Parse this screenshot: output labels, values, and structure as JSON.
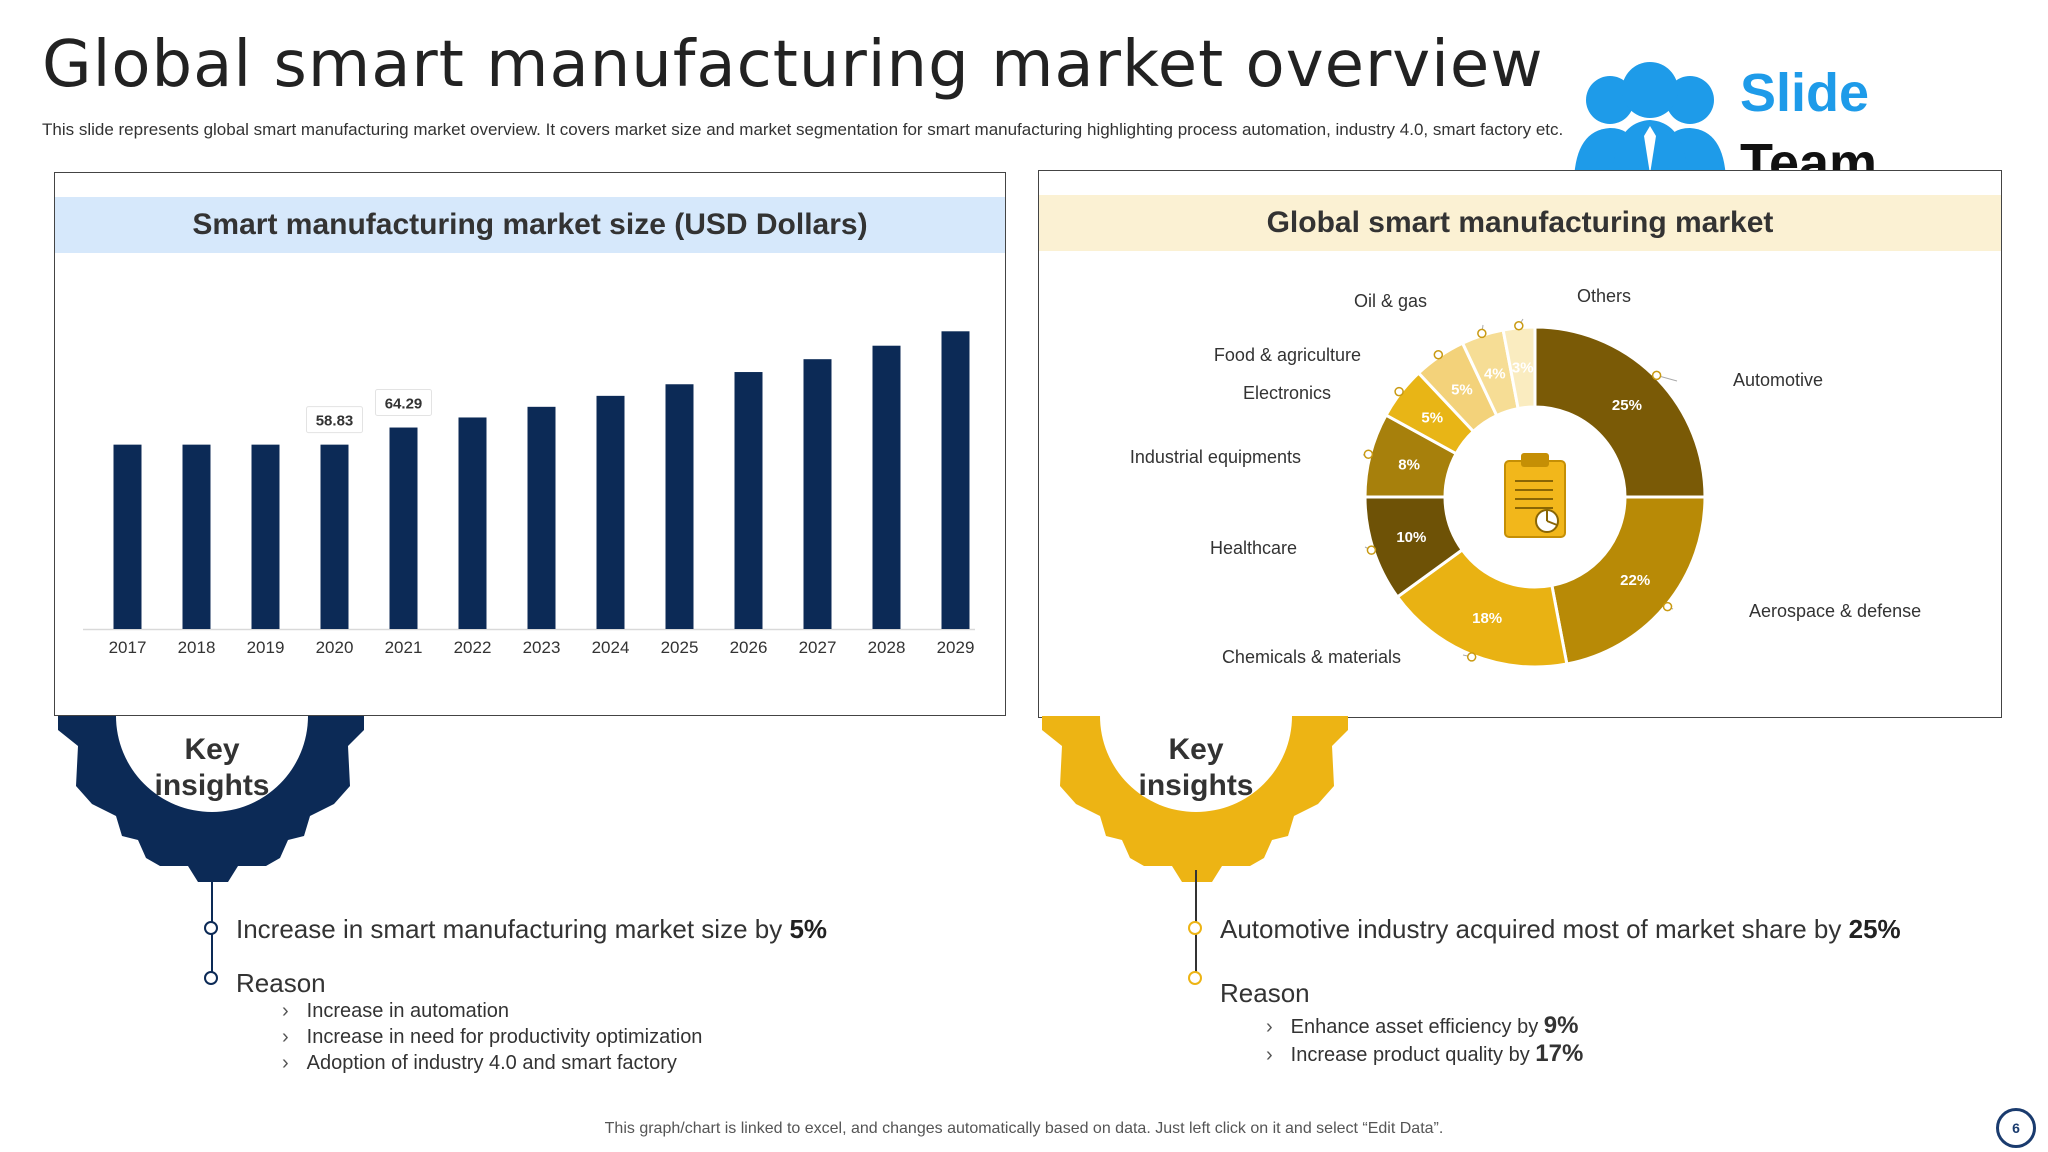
{
  "title": "Global smart manufacturing market overview",
  "subtitle": "This slide represents global smart manufacturing market overview. It covers market size and market segmentation for smart manufacturing highlighting process automation, industry 4.0, smart factory etc.",
  "logo": {
    "line1": "Slide",
    "line2": "Team",
    "icon": "people-group-icon"
  },
  "left_panel": {
    "heading": "Smart manufacturing market size (USD Dollars)"
  },
  "right_panel": {
    "heading": "Global smart manufacturing market"
  },
  "chart_data": [
    {
      "type": "bar",
      "title": "Smart manufacturing market size (USD Dollars)",
      "categories": [
        "2017",
        "2018",
        "2019",
        "2020",
        "2021",
        "2022",
        "2023",
        "2024",
        "2025",
        "2026",
        "2027",
        "2028",
        "2029"
      ],
      "values": [
        58.83,
        58.83,
        58.83,
        58.83,
        64.29,
        67.5,
        70.9,
        74.4,
        78.1,
        82.0,
        86.1,
        90.4,
        95.0
      ],
      "data_labels": {
        "2020": "58.83",
        "2021": "64.29"
      },
      "color": "#0c2a56"
    },
    {
      "type": "pie",
      "title": "Global smart manufacturing market",
      "donut": true,
      "slices": [
        {
          "label": "Automotive",
          "value": 25,
          "text": "25%",
          "color": "#7a5a06"
        },
        {
          "label": "Aerospace & defense",
          "value": 22,
          "text": "22%",
          "color": "#b88a06"
        },
        {
          "label": "Chemicals & materials",
          "value": 18,
          "text": "18%",
          "color": "#e9b213"
        },
        {
          "label": "Healthcare",
          "value": 10,
          "text": "10%",
          "color": "#6e5206"
        },
        {
          "label": "Industrial equipments",
          "value": 8,
          "text": "8%",
          "color": "#a7800c"
        },
        {
          "label": "Electronics",
          "value": 5,
          "text": "5%",
          "color": "#e8b516"
        },
        {
          "label": "Food & agriculture",
          "value": 5,
          "text": "5%",
          "color": "#f3d27a"
        },
        {
          "label": "Oil & gas",
          "value": 4,
          "text": "4%",
          "color": "#f6dd95"
        },
        {
          "label": "Others",
          "value": 3,
          "text": "3%",
          "color": "#faecc0"
        }
      ],
      "center_icon": "clipboard-chart-icon"
    }
  ],
  "left_insights": {
    "gear_label": "Key insights",
    "main_prefix": "Increase  in smart manufacturing  market  size by ",
    "main_value": "5%",
    "reason_label": "Reason",
    "bullets": [
      "Increase  in  automation",
      "Increase  in  need  for  productivity  optimization",
      "Adoption  of  industry  4.0  and  smart  factory"
    ],
    "accent": "#0c2a56"
  },
  "right_insights": {
    "gear_label": "Key insights",
    "main_prefix": "Automotive  industry  acquired most of market share by ",
    "main_value": "25%",
    "reason_label": "Reason",
    "bullets": [
      {
        "prefix": "Enhance  asset  efficiency  by ",
        "value": "9%"
      },
      {
        "prefix": "Increase  product  quality by ",
        "value": "17%"
      }
    ],
    "accent": "#edb414"
  },
  "footer": "This graph/chart is linked to excel, and changes automatically based on data. Just left click on it and select “Edit Data”.",
  "page_number": "6"
}
